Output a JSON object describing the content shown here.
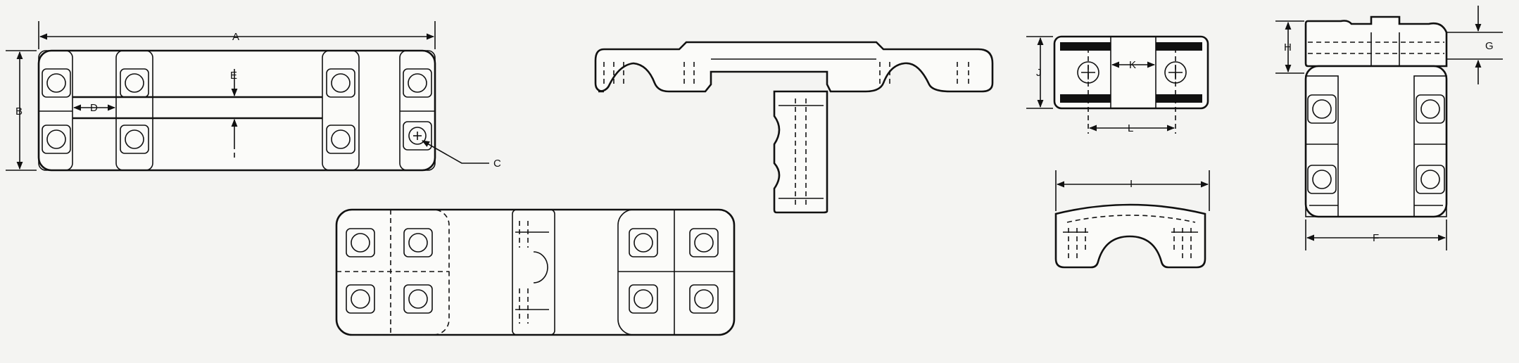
{
  "labels": {
    "a": "A",
    "b": "B",
    "c": "C",
    "d": "D",
    "e": "E",
    "f": "F",
    "g": "G",
    "h": "H",
    "i": "I",
    "j": "J",
    "k": "K",
    "l": "L"
  }
}
